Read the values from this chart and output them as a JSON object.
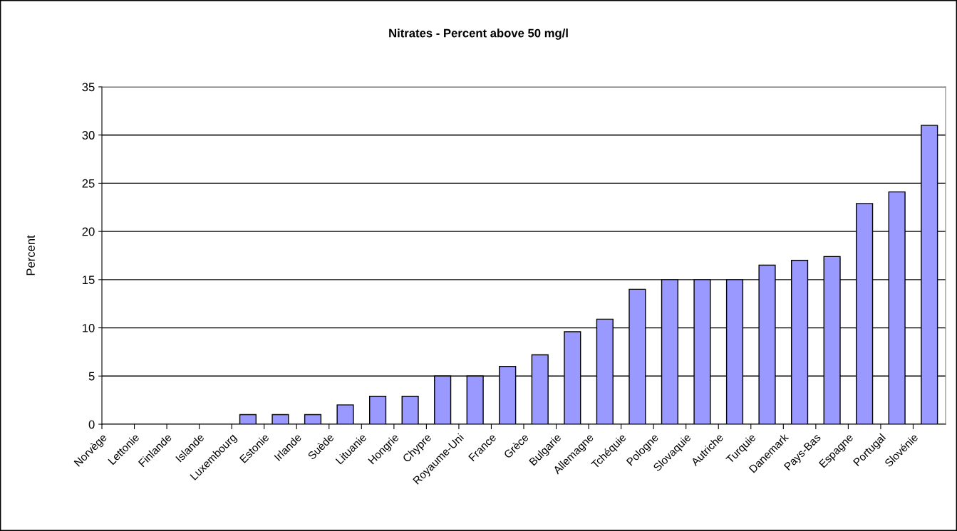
{
  "chart_data": {
    "type": "bar",
    "title": "Nitrates - Percent above 50 mg/l",
    "ylabel": "Percent",
    "categories": [
      "Norvège",
      "Lettonie",
      "Finlande",
      "Islande",
      "Luxembourg",
      "Estonie",
      "Irlande",
      "Suède",
      "Lituanie",
      "Hongrie",
      "Chypre",
      "Royaume-Uni",
      "France",
      "Grèce",
      "Bulgarie",
      "Allemagne",
      "Tchéquie",
      "Pologne",
      "Slovaquie",
      "Autriche",
      "Turquie",
      "Danemark",
      "Pays-Bas",
      "Espagne",
      "Portugal",
      "Slovénie"
    ],
    "values": [
      0,
      0,
      0,
      0,
      1,
      1,
      1,
      2,
      2.9,
      2.9,
      5,
      5,
      6,
      7.2,
      9.6,
      10.9,
      14,
      15,
      15,
      15,
      16.5,
      17,
      17.4,
      22.9,
      24.1,
      31
    ],
    "color": "#9999ff",
    "ylim": [
      0,
      35
    ],
    "yticks": [
      0,
      5,
      10,
      15,
      20,
      25,
      30,
      35
    ],
    "grid": "y",
    "legend": false
  }
}
